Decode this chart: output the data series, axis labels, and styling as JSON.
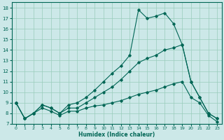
{
  "xlabel": "Humidex (Indice chaleur)",
  "background_color": "#cce8e8",
  "grid_color": "#99ccbb",
  "line_color": "#006655",
  "xlim": [
    -0.5,
    23.5
  ],
  "ylim": [
    7,
    18.5
  ],
  "xticks": [
    0,
    1,
    2,
    3,
    4,
    5,
    6,
    7,
    8,
    9,
    10,
    11,
    12,
    13,
    14,
    15,
    16,
    17,
    18,
    19,
    20,
    21,
    22,
    23
  ],
  "yticks": [
    7,
    8,
    9,
    10,
    11,
    12,
    13,
    14,
    15,
    16,
    17,
    18
  ],
  "series1": [
    9.0,
    7.5,
    8.0,
    8.8,
    8.5,
    8.0,
    8.8,
    9.0,
    9.5,
    10.2,
    11.0,
    11.8,
    12.5,
    13.5,
    17.8,
    17.0,
    17.2,
    17.5,
    16.5,
    14.5,
    11.0,
    9.5,
    8.0,
    7.5
  ],
  "series2": [
    9.0,
    7.5,
    8.0,
    8.8,
    8.5,
    8.0,
    8.5,
    8.5,
    9.0,
    9.5,
    10.0,
    10.5,
    11.2,
    12.0,
    12.8,
    13.2,
    13.5,
    14.0,
    14.2,
    14.5,
    11.0,
    9.5,
    8.0,
    7.5
  ],
  "series3": [
    9.0,
    7.5,
    8.0,
    8.5,
    8.2,
    7.8,
    8.2,
    8.2,
    8.5,
    8.7,
    8.8,
    9.0,
    9.2,
    9.5,
    9.8,
    10.0,
    10.2,
    10.5,
    10.8,
    11.0,
    9.5,
    9.0,
    7.8,
    7.2
  ]
}
